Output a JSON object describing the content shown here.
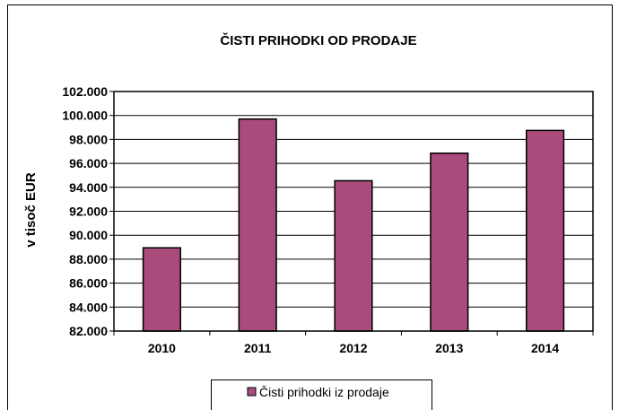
{
  "chart_data": {
    "type": "bar",
    "title": "ČISTI PRIHODKI OD PRODAJE",
    "xlabel": "",
    "ylabel": "v tisoč EUR",
    "categories": [
      "2010",
      "2011",
      "2012",
      "2013",
      "2014"
    ],
    "series": [
      {
        "name": "Čisti prihodki iz prodaje",
        "values": [
          88950,
          99700,
          94550,
          96850,
          98750
        ]
      }
    ],
    "ylim": [
      82000,
      102000
    ],
    "yticks": [
      "82.000",
      "84.000",
      "86.000",
      "88.000",
      "90.000",
      "92.000",
      "94.000",
      "96.000",
      "98.000",
      "100.000",
      "102.000"
    ],
    "grid": true,
    "legend_position": "bottom",
    "colors": {
      "bar": "#a94b7b",
      "outline": "#000000",
      "grid": "#000000",
      "background": "#ffffff"
    }
  }
}
